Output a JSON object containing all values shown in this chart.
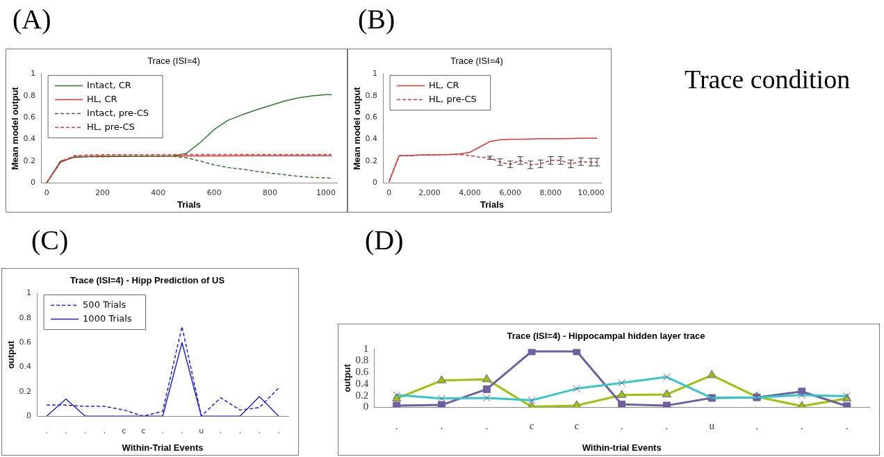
{
  "chart_data": [
    {
      "type": "line",
      "title": "Trace (ISI=4)",
      "xlabel": "Trials",
      "ylabel": "Mean model output",
      "annotations": [
        "(A)"
      ],
      "legend": "top left",
      "grid": false,
      "x": [
        0,
        50,
        100,
        150,
        200,
        250,
        300,
        350,
        400,
        450,
        500,
        550,
        600,
        650,
        700,
        750,
        800,
        850,
        900,
        950,
        1000,
        1020
      ],
      "xlim": [
        -20,
        1040
      ],
      "xticks": [
        0,
        200,
        400,
        600,
        800,
        1000
      ],
      "ylim": [
        0,
        1
      ],
      "yticks": [
        0,
        0.2,
        0.4,
        0.6,
        0.8,
        1
      ],
      "series": [
        {
          "name": "Intact, CR",
          "color": "#2a7a2a",
          "line_style": "solid",
          "values": [
            0,
            0.2,
            0.235,
            0.24,
            0.24,
            0.243,
            0.245,
            0.245,
            0.245,
            0.245,
            0.27,
            0.37,
            0.49,
            0.575,
            0.625,
            0.67,
            0.71,
            0.75,
            0.78,
            0.8,
            0.81,
            0.81
          ]
        },
        {
          "name": "HL, CR",
          "color": "#e03030",
          "line_style": "solid",
          "values": [
            0,
            0.19,
            0.24,
            0.243,
            0.245,
            0.245,
            0.245,
            0.246,
            0.246,
            0.246,
            0.247,
            0.247,
            0.247,
            0.247,
            0.248,
            0.248,
            0.248,
            0.248,
            0.249,
            0.249,
            0.249,
            0.249
          ]
        },
        {
          "name": "Intact, pre-CS",
          "color": "#2a7a2a",
          "line_style": "dashed",
          "values": [
            0,
            0.2,
            0.235,
            0.24,
            0.24,
            0.243,
            0.245,
            0.245,
            0.245,
            0.245,
            0.23,
            0.2,
            0.165,
            0.14,
            0.125,
            0.105,
            0.09,
            0.075,
            0.06,
            0.05,
            0.045,
            0.043
          ]
        },
        {
          "name": "HL, pre-CS",
          "color": "#e03030",
          "line_style": "dashed",
          "values": [
            0,
            0.19,
            0.25,
            0.255,
            0.258,
            0.258,
            0.258,
            0.259,
            0.259,
            0.259,
            0.26,
            0.26,
            0.26,
            0.26,
            0.26,
            0.26,
            0.26,
            0.26,
            0.26,
            0.26,
            0.26,
            0.26
          ]
        }
      ]
    },
    {
      "type": "line",
      "title": "Trace (ISI=4)",
      "xlabel": "Trials",
      "ylabel": "Mean model output",
      "annotations": [
        "(B)"
      ],
      "legend": "top left",
      "grid": false,
      "x": [
        0,
        500,
        1000,
        1500,
        2000,
        2500,
        3000,
        3500,
        4000,
        4500,
        5000,
        5500,
        6000,
        6500,
        7000,
        7500,
        8000,
        8500,
        9000,
        9500,
        10000,
        10300
      ],
      "xlim": [
        -300,
        10500
      ],
      "xticks": [
        {
          "value": 0,
          "label": "0"
        },
        {
          "value": 2000,
          "label": "2,000"
        },
        {
          "value": 4000,
          "label": "4,000"
        },
        {
          "value": 6000,
          "label": "6,000"
        },
        {
          "value": 8000,
          "label": "8,000"
        },
        {
          "value": 10000,
          "label": "10,000"
        }
      ],
      "ylim": [
        0,
        1
      ],
      "yticks": [
        0,
        0.2,
        0.4,
        0.6,
        0.8,
        1
      ],
      "series": [
        {
          "name": "HL, CR",
          "color": "#e03030",
          "line_style": "solid",
          "values": [
            0.01,
            0.25,
            0.25,
            0.255,
            0.257,
            0.258,
            0.26,
            0.265,
            0.28,
            0.33,
            0.38,
            0.395,
            0.4,
            0.4,
            0.402,
            0.405,
            0.405,
            0.405,
            0.407,
            0.41,
            0.41,
            0.41
          ]
        },
        {
          "name": "HL, pre-CS",
          "color": "#e03030",
          "line_style": "dashed",
          "values": [
            0.01,
            0.25,
            0.25,
            0.255,
            0.257,
            0.258,
            0.26,
            0.26,
            0.25,
            0.235,
            0.23,
            0.19,
            0.17,
            0.205,
            0.165,
            0.175,
            0.205,
            0.205,
            0.175,
            0.195,
            0.19,
            0.19
          ],
          "errors": [
            null,
            null,
            null,
            null,
            null,
            null,
            null,
            null,
            null,
            null,
            0.015,
            0.03,
            0.03,
            0.035,
            0.035,
            0.035,
            0.035,
            0.035,
            0.035,
            0.035,
            0.035,
            0.035
          ]
        }
      ]
    },
    {
      "type": "line",
      "title": "Trace (ISI=4) - Hipp Prediction of US",
      "xlabel": "Within-Trial Events",
      "ylabel": "output",
      "annotations": [
        "(C)"
      ],
      "legend": "top left",
      "grid": false,
      "categories": [
        ".",
        ".",
        ".",
        ".",
        "c",
        "c",
        ".",
        ".",
        "u",
        ".",
        ".",
        ".",
        "."
      ],
      "ylim": [
        0,
        1
      ],
      "yticks": [
        0,
        0.2,
        0.4,
        0.6,
        0.8,
        1
      ],
      "series": [
        {
          "name": "500 Trials",
          "color": "#2020e0",
          "line_style": "dashed",
          "values": [
            0.09,
            0.09,
            0.08,
            0.08,
            0.05,
            0,
            0.04,
            0.73,
            0,
            0.15,
            0.05,
            0.07,
            0.23
          ]
        },
        {
          "name": "1000 Trials",
          "color": "#2020e0",
          "line_style": "solid",
          "values": [
            0,
            0.14,
            0,
            0,
            0,
            0,
            0,
            0.6,
            0,
            0,
            0,
            0.16,
            0
          ]
        }
      ]
    },
    {
      "type": "line",
      "title": "Trace (ISI=4) - Hippocampal hidden layer trace",
      "xlabel": "Within-trial Events",
      "ylabel": "output",
      "annotations": [
        "(D)"
      ],
      "grid": false,
      "categories": [
        ".",
        ".",
        ".",
        "c",
        "c",
        ".",
        ".",
        "u",
        ".",
        ".",
        "."
      ],
      "ylim": [
        0,
        1
      ],
      "yticks": [
        0,
        0.2,
        0.4,
        0.6,
        0.8,
        1
      ],
      "series": [
        {
          "color": "#99c40a",
          "marker": "triangle",
          "line_style": "solid",
          "values": [
            0.15,
            0.46,
            0.48,
            0.01,
            0.03,
            0.21,
            0.22,
            0.55,
            0.18,
            0.02,
            0.15
          ]
        },
        {
          "color": "#6e5f9e",
          "marker": "square",
          "line_style": "solid",
          "values": [
            0.03,
            0.04,
            0.31,
            0.96,
            0.96,
            0.05,
            0.03,
            0.16,
            0.17,
            0.27,
            0.02
          ]
        },
        {
          "color": "#35c6cc",
          "marker": "cross",
          "line_style": "solid",
          "values": [
            0.21,
            0.15,
            0.16,
            0.12,
            0.32,
            0.42,
            0.52,
            0.16,
            0.17,
            0.21,
            0.19
          ]
        }
      ]
    },
    {
      "type": "other",
      "title": "Trace condition"
    }
  ]
}
